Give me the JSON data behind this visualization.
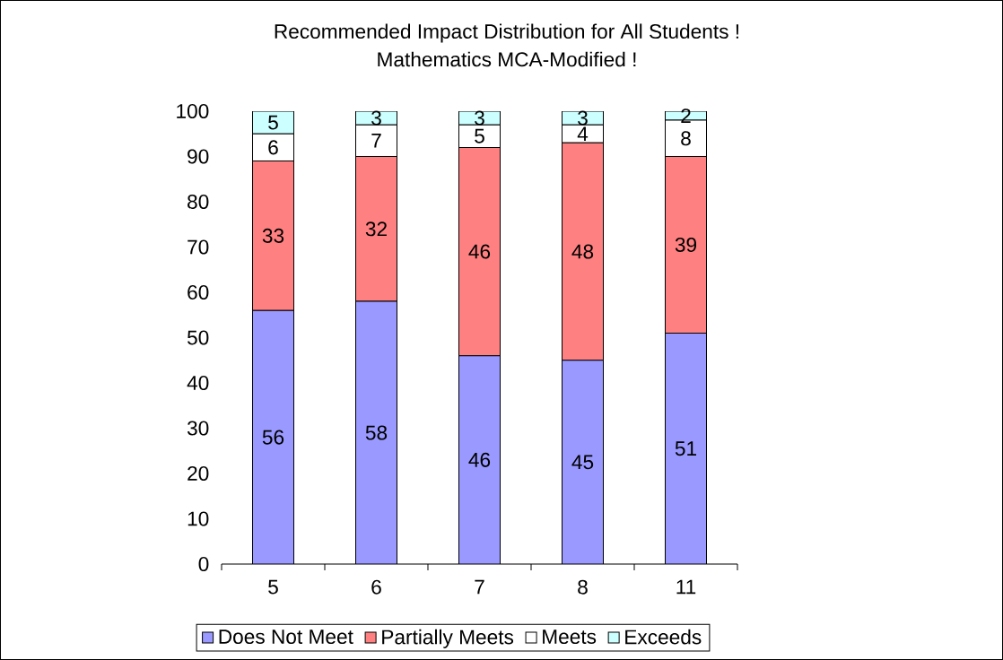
{
  "chart_data": {
    "type": "bar",
    "stacked": true,
    "title": "Recommended Impact Distribution for All Students !",
    "subtitle": "Mathematics MCA-Modified !",
    "categories": [
      "5",
      "6",
      "7",
      "8",
      "11"
    ],
    "series": [
      {
        "name": "Does Not Meet",
        "color": "#9999ff",
        "values": [
          56,
          58,
          46,
          45,
          51
        ]
      },
      {
        "name": "Partially Meets",
        "color": "#ff8080",
        "values": [
          33,
          32,
          46,
          48,
          39
        ]
      },
      {
        "name": "Meets",
        "color": "#ffffff",
        "values": [
          6,
          7,
          5,
          4,
          8
        ]
      },
      {
        "name": "Exceeds",
        "color": "#ccffff",
        "values": [
          5,
          3,
          3,
          3,
          2
        ]
      }
    ],
    "ylim": [
      0,
      100
    ],
    "yticks": [
      0,
      10,
      20,
      30,
      40,
      50,
      60,
      70,
      80,
      90,
      100
    ],
    "data_labels": true,
    "legend": "bottom"
  }
}
